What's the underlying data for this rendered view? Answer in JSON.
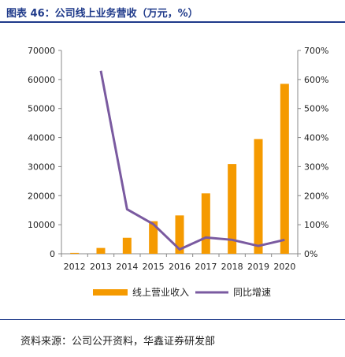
{
  "figure": {
    "title": "图表 46：公司线上业务营收（万元，%）",
    "source": "资料来源：公司公开资料，华鑫证券研发部"
  },
  "chart_data": {
    "type": "bar",
    "categories": [
      "2012",
      "2013",
      "2014",
      "2015",
      "2016",
      "2017",
      "2018",
      "2019",
      "2020"
    ],
    "series": [
      {
        "name": "线上营业收入",
        "type": "bar",
        "axis": "left",
        "color": "#f59a00",
        "values": [
          300,
          2000,
          5500,
          11200,
          13200,
          20800,
          30900,
          39500,
          58500
        ]
      },
      {
        "name": "同比增速",
        "type": "line",
        "axis": "right",
        "color": "#7a5aa0",
        "values": [
          null,
          630,
          153,
          102,
          15,
          56,
          48,
          27,
          48
        ]
      }
    ],
    "left_axis": {
      "min": 0,
      "max": 70000,
      "ticks": [
        "0",
        "10000",
        "20000",
        "30000",
        "40000",
        "50000",
        "60000",
        "70000"
      ]
    },
    "right_axis": {
      "min": 0,
      "max": 700,
      "ticks": [
        "0%",
        "100%",
        "200%",
        "300%",
        "400%",
        "500%",
        "600%",
        "700%"
      ]
    },
    "legend_position": "bottom"
  }
}
